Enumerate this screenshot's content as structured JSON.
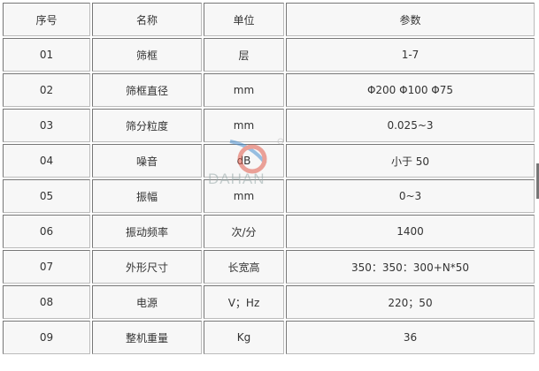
{
  "headers": [
    "序号",
    "名称",
    "单位",
    "参数"
  ],
  "rows": [
    [
      "01",
      "筛框",
      "层",
      "1-7"
    ],
    [
      "02",
      "筛框直径",
      "mm",
      "Φ200 Φ100 Φ75"
    ],
    [
      "03",
      "筛分粒度",
      "mm",
      "0.025~3"
    ],
    [
      "04",
      "噪音",
      "dB",
      "小于 50"
    ],
    [
      "05",
      "振幅",
      "mm",
      "0~3"
    ],
    [
      "06",
      "振动频率",
      "次/分",
      "1400"
    ],
    [
      "07",
      "外形尺寸",
      "长宽高",
      "350：350：300+N*50"
    ],
    [
      "08",
      "电源",
      "V；Hz",
      "220；50"
    ],
    [
      "09",
      "整机重量",
      "Kg",
      "36"
    ]
  ],
  "watermark": {
    "text": "DAHAN",
    "colors": [
      "#e05a4a",
      "#4a90d0"
    ]
  }
}
